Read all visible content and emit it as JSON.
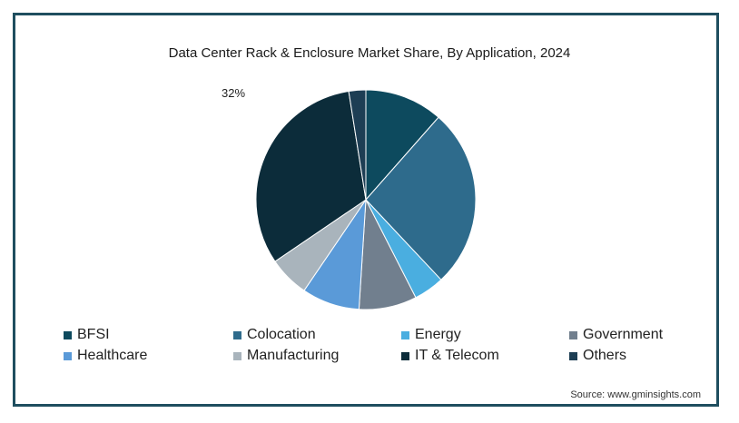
{
  "chart_data": {
    "type": "pie",
    "title": "Data Center Rack & Enclosure Market Share, By Application, 2024",
    "source": "Source: www.gminsights.com",
    "legend_position": "bottom",
    "slices": [
      {
        "label": "BFSI",
        "value": 11.5,
        "color": "#0d4a5e"
      },
      {
        "label": "Colocation",
        "value": 26.5,
        "color": "#2e6b8c"
      },
      {
        "label": "Energy",
        "value": 4.5,
        "color": "#4aaee0"
      },
      {
        "label": "Government",
        "value": 8.5,
        "color": "#717f8e"
      },
      {
        "label": "Healthcare",
        "value": 8.5,
        "color": "#5a9ad8"
      },
      {
        "label": "Manufacturing",
        "value": 6.0,
        "color": "#a9b4bc"
      },
      {
        "label": "IT & Telecom",
        "value": 32,
        "color": "#0c2c3a"
      },
      {
        "label": "Others",
        "value": 2.5,
        "color": "#1d3e54"
      }
    ],
    "data_labels": [
      {
        "slice": "IT & Telecom",
        "text": "32%"
      }
    ]
  }
}
